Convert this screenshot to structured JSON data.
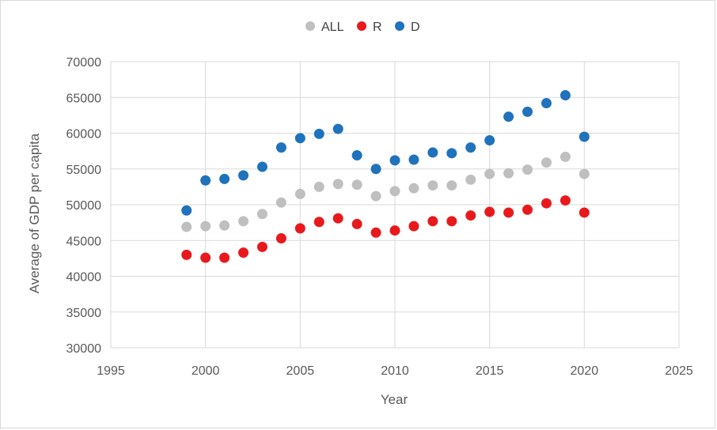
{
  "chart_data": {
    "type": "scatter",
    "title": "",
    "xlabel": "Year",
    "ylabel": "Average of GDP per capita",
    "xlim": [
      1995,
      2025
    ],
    "ylim": [
      30000,
      70000
    ],
    "xticks": [
      1995,
      2000,
      2005,
      2010,
      2015,
      2020,
      2025
    ],
    "yticks": [
      30000,
      35000,
      40000,
      45000,
      50000,
      55000,
      60000,
      65000,
      70000
    ],
    "grid": true,
    "legend_position": "top",
    "x": [
      1999,
      2000,
      2001,
      2002,
      2003,
      2004,
      2005,
      2006,
      2007,
      2008,
      2009,
      2010,
      2011,
      2012,
      2013,
      2014,
      2015,
      2016,
      2017,
      2018,
      2019,
      2020
    ],
    "series": [
      {
        "name": "ALL",
        "color": "#bfbfbf",
        "values": [
          46900,
          47000,
          47100,
          47700,
          48700,
          50300,
          51500,
          52500,
          52900,
          52800,
          51200,
          51900,
          52300,
          52700,
          52700,
          53500,
          54300,
          54400,
          54900,
          55900,
          56700,
          54300
        ]
      },
      {
        "name": "R",
        "color": "#e8191c",
        "values": [
          43000,
          42600,
          42600,
          43300,
          44100,
          45300,
          46700,
          47600,
          48100,
          47300,
          46100,
          46400,
          47000,
          47700,
          47700,
          48500,
          49000,
          48900,
          49300,
          50200,
          50600,
          48900
        ]
      },
      {
        "name": "D",
        "color": "#1f72bc",
        "values": [
          49200,
          53400,
          53600,
          54100,
          55300,
          58000,
          59300,
          59900,
          60600,
          56900,
          55000,
          56200,
          56300,
          57300,
          57200,
          58000,
          59000,
          62300,
          63000,
          64200,
          65300,
          59500
        ]
      }
    ]
  }
}
